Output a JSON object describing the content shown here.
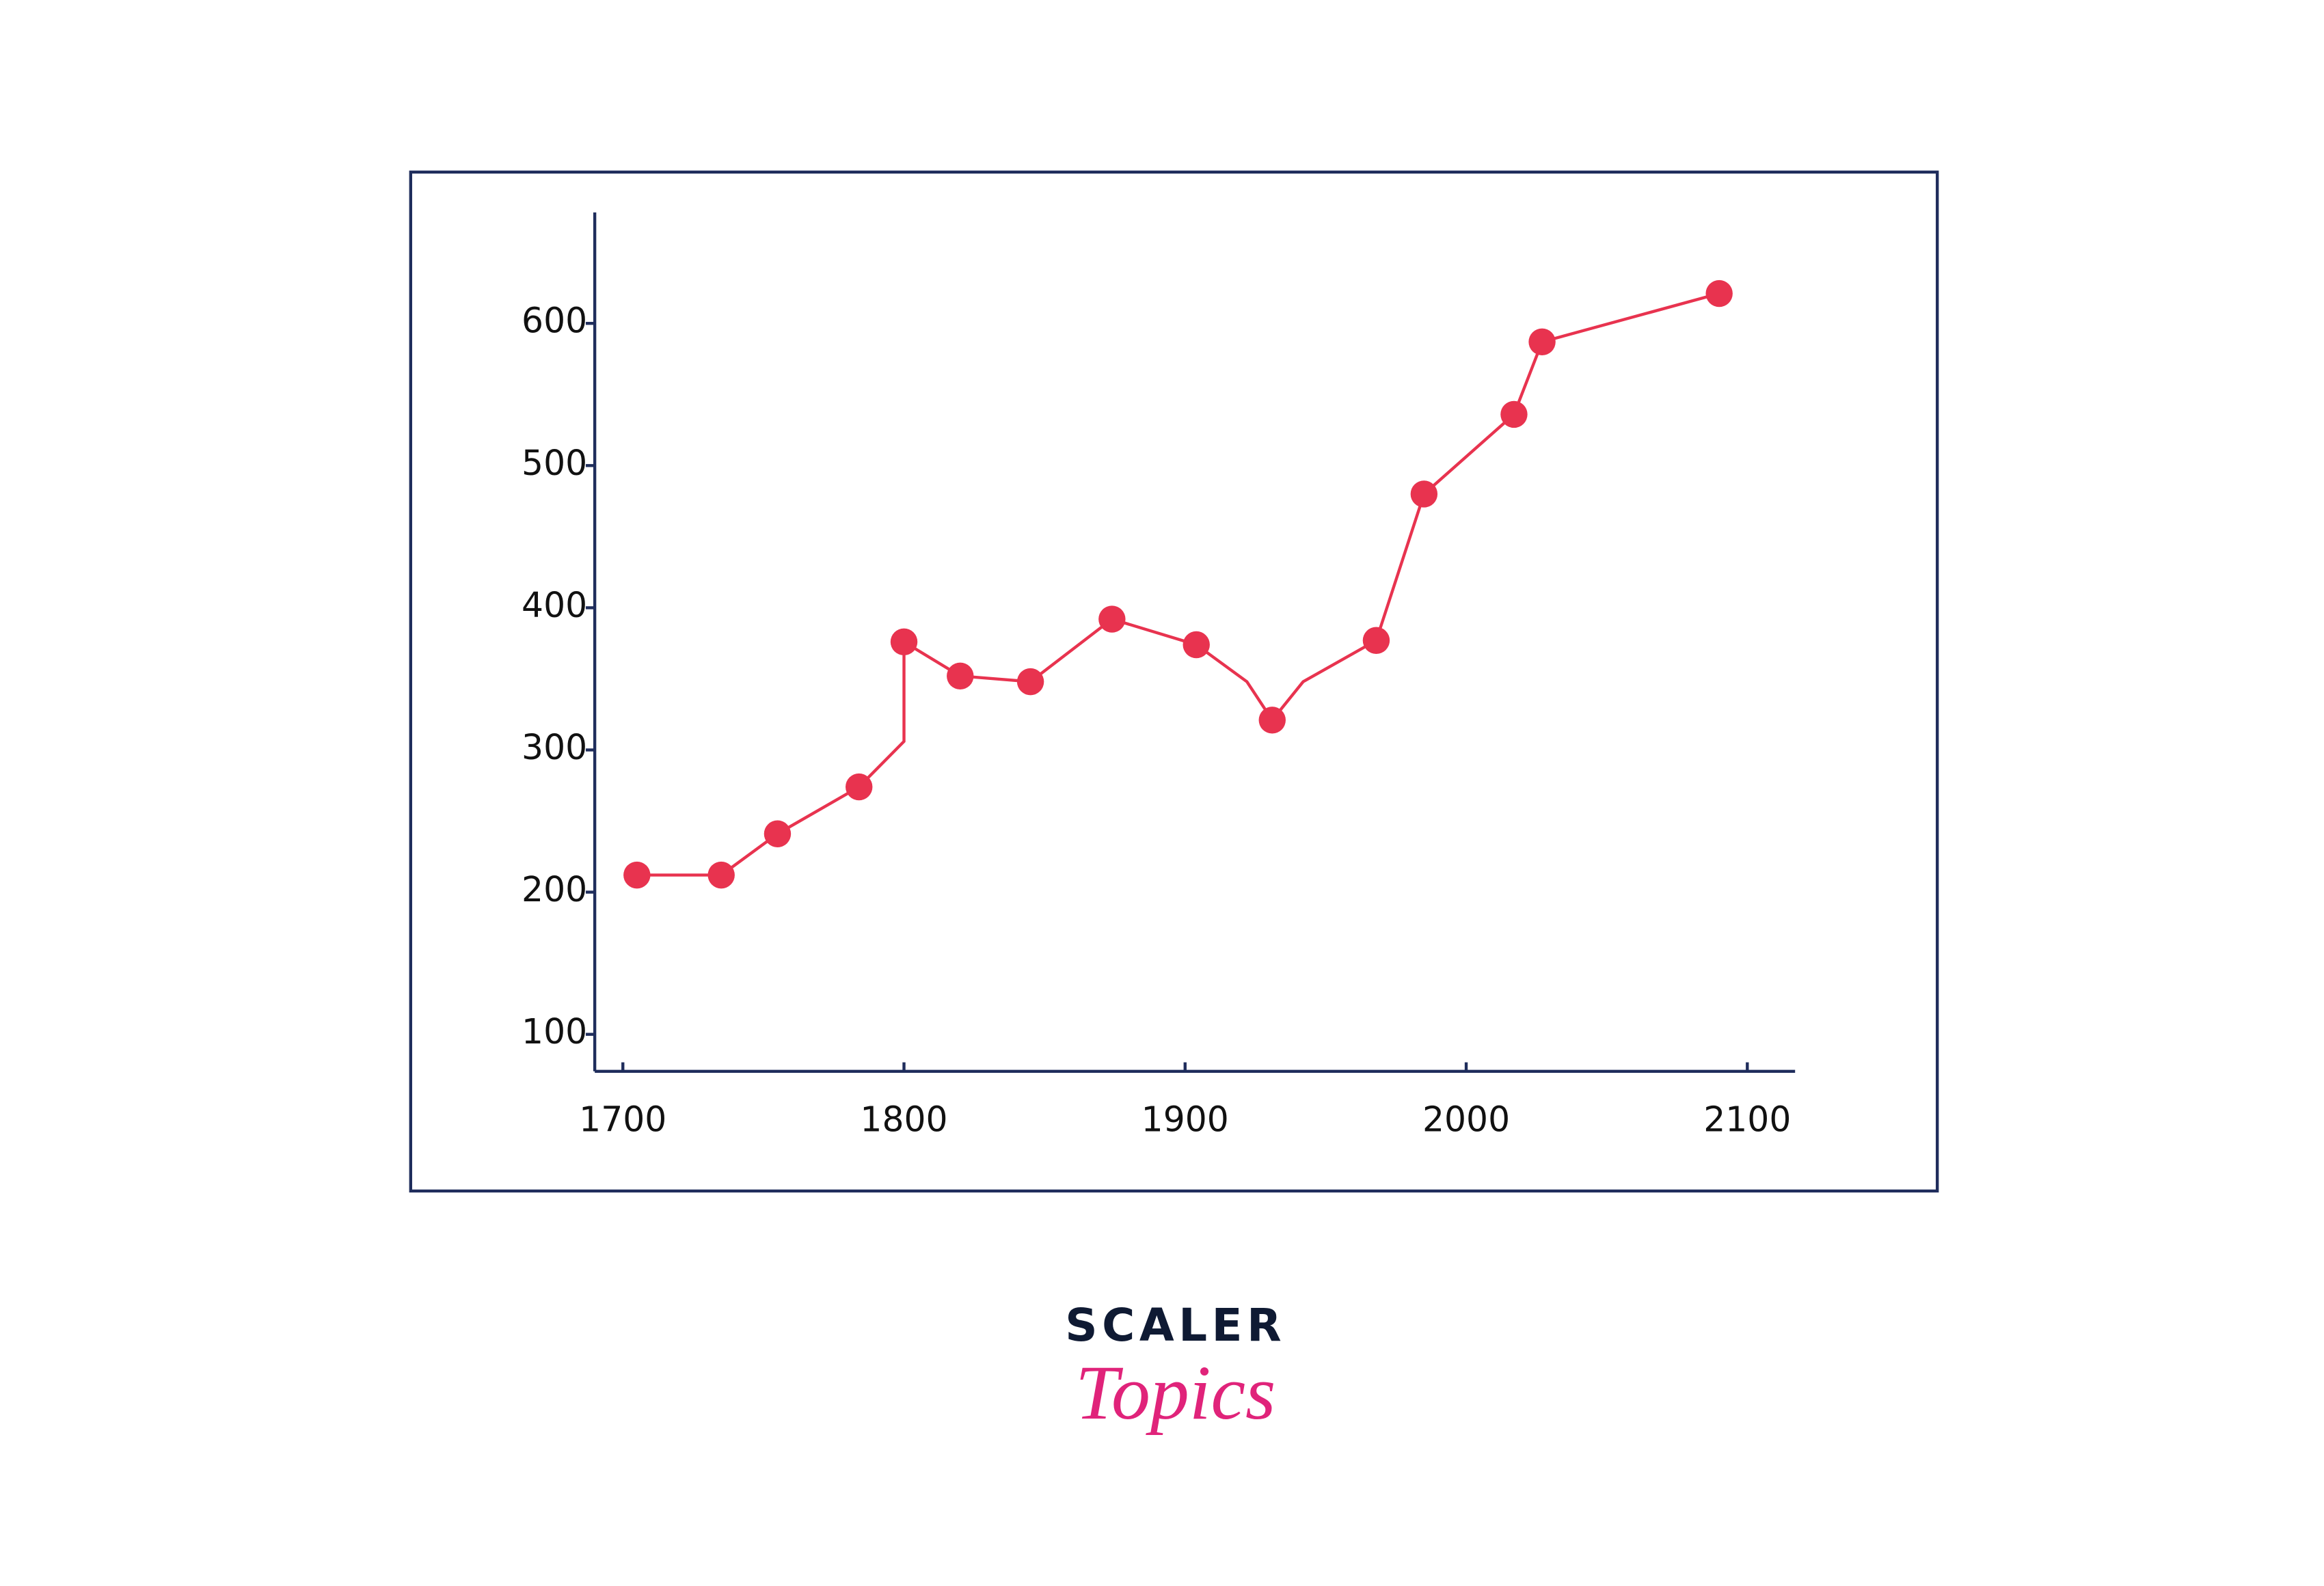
{
  "chart_data": {
    "type": "line",
    "line": {
      "color": "#e8334f",
      "x": [
        1705,
        1735,
        1755,
        1784,
        1800,
        1800,
        1820,
        1845,
        1874,
        1904,
        1922,
        1931,
        1942,
        1968,
        1985,
        2017,
        2027,
        2090
      ],
      "values": [
        212,
        212,
        241,
        274,
        306,
        376,
        352,
        348,
        392,
        374,
        348,
        321,
        348,
        377,
        480,
        536,
        587,
        621
      ]
    },
    "markers": {
      "color": "#e8334f",
      "x": [
        1705,
        1735,
        1755,
        1784,
        1800,
        1820,
        1845,
        1874,
        1904,
        1931,
        1968,
        1985,
        2017,
        2027,
        2090
      ],
      "values": [
        212,
        212,
        241,
        274,
        376,
        352,
        348,
        392,
        374,
        321,
        377,
        480,
        536,
        587,
        621
      ]
    },
    "xlim": [
      1690,
      2117
    ],
    "ylim": [
      74,
      678
    ],
    "xticks": [
      1700,
      1800,
      1900,
      2000,
      2100
    ],
    "yticks": [
      100,
      200,
      300,
      400,
      500,
      600
    ]
  },
  "logo": {
    "line1": "SCALER",
    "line2": "Topics"
  }
}
